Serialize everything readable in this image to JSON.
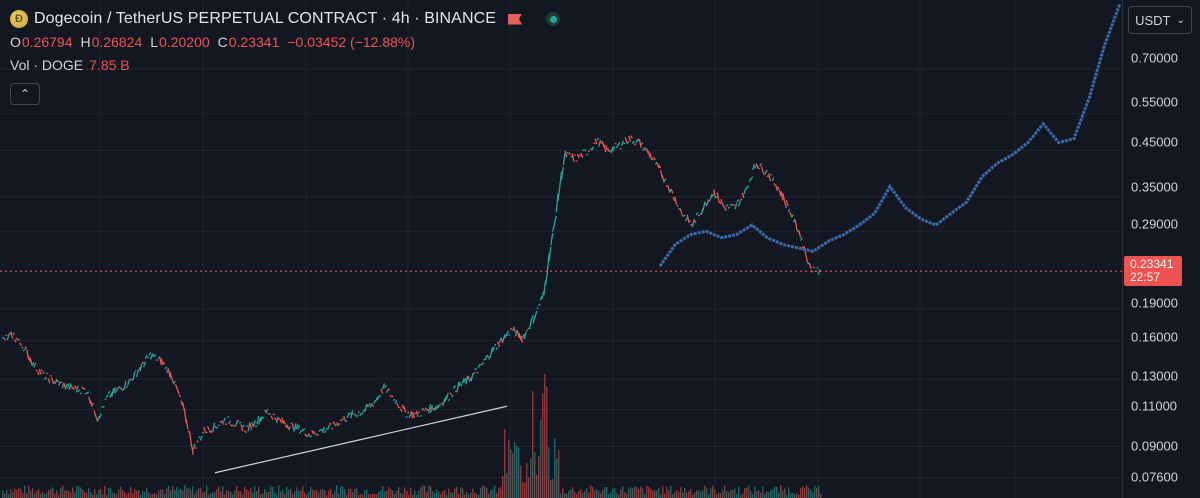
{
  "header": {
    "symbol_title": "Dogecoin / TetherUS PERPETUAL CONTRACT · 4h · BINANCE",
    "coin_icon_glyph": "Ð",
    "ohlc": [
      {
        "key": "O",
        "value": "0.26794"
      },
      {
        "key": "H",
        "value": "0.26824"
      },
      {
        "key": "L",
        "value": "0.20200"
      },
      {
        "key": "C",
        "value": "0.23341"
      },
      {
        "key": "",
        "value": "−0.03452 (−12.88%)"
      }
    ],
    "volume": {
      "label": "Vol · DOGE",
      "value": "7.85 B"
    },
    "collapse_glyph": "⌃"
  },
  "price_axis": {
    "currency": "USDT",
    "currency_chevron": "⌄",
    "ticks": [
      "0.70000",
      "0.55000",
      "0.45000",
      "0.35000",
      "0.29000",
      "0.19000",
      "0.16000",
      "0.13000",
      "0.11000",
      "0.09000",
      "0.07600"
    ],
    "last_price": "0.23341",
    "countdown": "22:57"
  },
  "colors": {
    "background": "#131722",
    "up": "#26a69a",
    "down": "#ef5350",
    "projection": "#3f74b8",
    "grid": "#1f2330",
    "trendline": "#cfd3dc"
  },
  "chart_data": {
    "type": "line",
    "scale": "log",
    "ylim": [
      0.068,
      1.02
    ],
    "price_series": [
      0.16,
      0.165,
      0.155,
      0.14,
      0.132,
      0.128,
      0.125,
      0.123,
      0.122,
      0.105,
      0.118,
      0.123,
      0.128,
      0.138,
      0.148,
      0.143,
      0.132,
      0.112,
      0.088,
      0.098,
      0.1,
      0.104,
      0.102,
      0.099,
      0.103,
      0.109,
      0.104,
      0.101,
      0.099,
      0.096,
      0.098,
      0.1,
      0.104,
      0.107,
      0.109,
      0.114,
      0.124,
      0.116,
      0.108,
      0.107,
      0.11,
      0.112,
      0.118,
      0.125,
      0.13,
      0.138,
      0.15,
      0.16,
      0.17,
      0.162,
      0.18,
      0.205,
      0.3,
      0.44,
      0.43,
      0.445,
      0.475,
      0.45,
      0.46,
      0.48,
      0.47,
      0.44,
      0.4,
      0.36,
      0.32,
      0.3,
      0.33,
      0.36,
      0.33,
      0.33,
      0.36,
      0.42,
      0.4,
      0.37,
      0.33,
      0.29,
      0.24,
      0.233
    ],
    "projection_series": [
      0.24,
      0.27,
      0.285,
      0.29,
      0.28,
      0.285,
      0.3,
      0.28,
      0.27,
      0.265,
      0.26,
      0.275,
      0.285,
      0.3,
      0.32,
      0.37,
      0.33,
      0.31,
      0.3,
      0.32,
      0.34,
      0.39,
      0.42,
      0.44,
      0.47,
      0.52,
      0.47,
      0.48,
      0.6,
      0.8,
      1.0
    ],
    "trendline": {
      "from": 0.078,
      "to": 0.112
    },
    "last_price": 0.23341
  }
}
